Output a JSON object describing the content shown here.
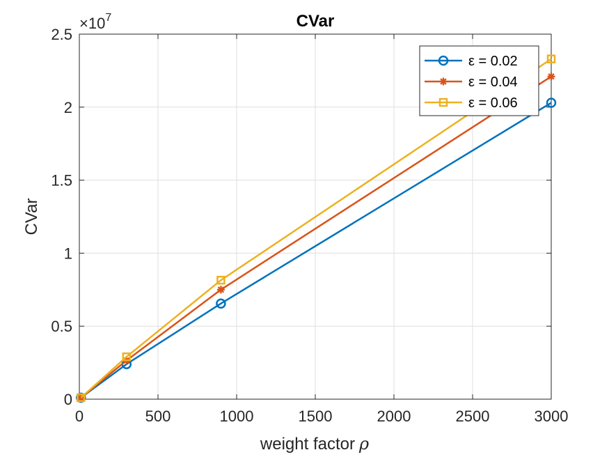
{
  "chart_data": {
    "type": "line",
    "title": "CVar",
    "xlabel": "weight factor",
    "xlabel_symbol": "ρ",
    "ylabel": "CVar",
    "y_exponent_prefix": "×10",
    "y_exponent_power": "7",
    "xlim": [
      0,
      3000
    ],
    "ylim": [
      0,
      2.5
    ],
    "y_multiplier": 10000000,
    "x_ticks": [
      0,
      500,
      1000,
      1500,
      2000,
      2500,
      3000
    ],
    "x_tick_labels": [
      "0",
      "500",
      "1000",
      "1500",
      "2000",
      "2500",
      "3000"
    ],
    "y_ticks": [
      0,
      0.5,
      1,
      1.5,
      2,
      2.5
    ],
    "y_tick_labels": [
      "0",
      "0.5",
      "1",
      "1.5",
      "2",
      "2.5"
    ],
    "grid": true,
    "legend_position": "top-right",
    "series": [
      {
        "name": "ε  = 0.02",
        "color": "#0072BD",
        "marker": "circle",
        "x": [
          10,
          300,
          900,
          3000
        ],
        "y": [
          0.01,
          0.24,
          0.655,
          2.03
        ]
      },
      {
        "name": "ε  = 0.04",
        "color": "#D95319",
        "marker": "asterisk",
        "x": [
          10,
          300,
          900,
          3000
        ],
        "y": [
          0.01,
          0.265,
          0.75,
          2.21
        ]
      },
      {
        "name": "ε  = 0.06",
        "color": "#EDB120",
        "marker": "square",
        "x": [
          10,
          300,
          900,
          3000
        ],
        "y": [
          0.01,
          0.29,
          0.815,
          2.33
        ]
      }
    ]
  }
}
